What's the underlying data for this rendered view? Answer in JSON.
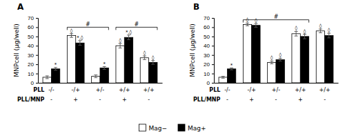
{
  "chart_data": [
    {
      "type": "bar",
      "title": "A",
      "ylabel": "MNPcell (μg/well)",
      "categories": [
        "-/-",
        "-/+",
        "+/-",
        "+/+",
        "+/+"
      ],
      "category_rows": [
        {
          "label": "PLL",
          "categories": [
            "-/-",
            "-/+",
            "+/-",
            "+/+",
            "+/+"
          ]
        },
        {
          "label": "PLL/MNP",
          "categories": [
            "-",
            "+",
            "-",
            "+",
            "-"
          ]
        }
      ],
      "series": [
        {
          "name": "Mag−",
          "color": "white",
          "values": [
            6,
            51,
            7,
            40,
            27
          ],
          "errors": [
            1.5,
            2.0,
            1.5,
            2.5,
            2.0
          ],
          "annotations": [
            null,
            "◊",
            null,
            "◊",
            "◊"
          ]
        },
        {
          "name": "Mag+",
          "color": "black",
          "values": [
            15,
            43,
            16,
            49,
            22
          ],
          "errors": [
            1.5,
            2.5,
            1.5,
            2.5,
            2.0
          ],
          "annotations": [
            "*",
            "*,◊",
            "*",
            "*,◊",
            "◊"
          ]
        }
      ],
      "brackets": [
        {
          "start": 1,
          "end": 2,
          "y": 60,
          "label": "#"
        },
        {
          "start": 3,
          "end": 4,
          "y": 60,
          "label": "#"
        }
      ],
      "ylim": [
        0,
        70
      ],
      "yticks": [
        0,
        10,
        20,
        30,
        40,
        50,
        60,
        70
      ],
      "legend": "bottom"
    },
    {
      "type": "bar",
      "title": "B",
      "ylabel": "MNPcell (μg/well)",
      "categories": [
        "-/-",
        "-/+",
        "+/-",
        "+/+",
        "+/+"
      ],
      "category_rows": [
        {
          "label": "PLL",
          "categories": [
            "-/-",
            "-/+",
            "+/-",
            "+/+",
            "+/+"
          ]
        },
        {
          "label": "PLL/MNP",
          "categories": [
            "-",
            "+",
            "-",
            "+",
            "-"
          ]
        }
      ],
      "series": [
        {
          "name": "Mag−",
          "color": "white",
          "values": [
            6,
            63,
            22,
            53,
            56
          ],
          "errors": [
            1.0,
            1.5,
            1.5,
            2.5,
            2.0
          ],
          "annotations": [
            null,
            "◊",
            "◊",
            "◊",
            "◊"
          ]
        },
        {
          "name": "Mag+",
          "color": "black",
          "values": [
            15,
            62,
            25,
            50,
            51
          ],
          "errors": [
            1.0,
            2.0,
            1.5,
            2.5,
            2.5
          ],
          "annotations": [
            "*",
            "◊",
            "◊",
            "◊",
            "◊"
          ]
        }
      ],
      "brackets": [
        {
          "start": 1,
          "end": 3,
          "y": 68,
          "label": "#"
        }
      ],
      "ylim": [
        0,
        70
      ],
      "yticks": [
        0,
        10,
        20,
        30,
        40,
        50,
        60,
        70
      ]
    }
  ]
}
